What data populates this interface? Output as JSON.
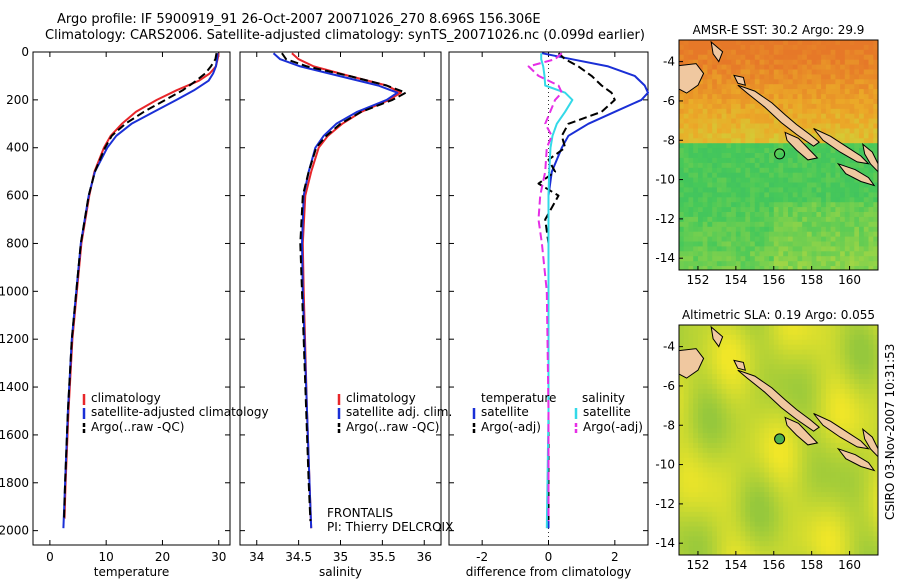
{
  "header": {
    "line1": "Argo profile: IF 5900919_91 26-Oct-2007 20071026_270 8.696S 156.306E",
    "line2": "Climatology: CARS2006. Satellite-adjusted climatology: synTS_20071026.nc (0.099d earlier)"
  },
  "side_stamp": "CSIRO 03-Nov-2007 10:31:53",
  "colors": {
    "climatology": "#e8262a",
    "satellite": "#1a2fd6",
    "argo": "#000000",
    "argo_adj": "#e62ee6",
    "satellite_diff": "#33d9e8"
  },
  "chart_data": [
    {
      "type": "line",
      "xlabel": "temperature",
      "ylim": [
        2060,
        0
      ],
      "xlim": [
        -3,
        32
      ],
      "xticks": [
        "0",
        "10",
        "20",
        "30"
      ],
      "yticks": [
        "0",
        "200",
        "400",
        "600",
        "800",
        "1000",
        "1200",
        "1400",
        "1600",
        "1800",
        "2000"
      ],
      "legend": [
        "climatology",
        "satellite-adjusted climatology",
        "Argo(..raw -QC)"
      ],
      "series": [
        {
          "name": "climatology",
          "style": "solid",
          "color": "#e8262a",
          "depth": [
            5,
            30,
            60,
            90,
            120,
            160,
            200,
            250,
            300,
            350,
            400,
            500,
            600,
            800,
            1000,
            1200,
            1500,
            1800,
            1950
          ],
          "values": [
            30.0,
            29.8,
            29.5,
            28.4,
            26.5,
            22.5,
            19.0,
            15.3,
            12.8,
            10.8,
            9.6,
            7.9,
            7.0,
            5.6,
            4.8,
            4.0,
            3.3,
            2.8,
            2.6
          ]
        },
        {
          "name": "satellite-adjusted climatology",
          "style": "solid",
          "color": "#1a2fd6",
          "depth": [
            5,
            30,
            60,
            90,
            120,
            160,
            200,
            250,
            300,
            350,
            400,
            500,
            600,
            800,
            1000,
            1200,
            1500,
            1800,
            1990
          ],
          "values": [
            29.8,
            29.7,
            29.5,
            29.0,
            28.2,
            25.6,
            22.5,
            18.5,
            14.5,
            11.8,
            10.2,
            8.0,
            6.9,
            5.5,
            4.7,
            3.9,
            3.2,
            2.7,
            2.4
          ]
        },
        {
          "name": "Argo(..raw -QC)",
          "style": "dashed",
          "color": "#000000",
          "depth": [
            5,
            30,
            60,
            90,
            120,
            160,
            200,
            250,
            300,
            350,
            400,
            500,
            600,
            800,
            1000,
            1200,
            1500,
            1800,
            1960
          ],
          "values": [
            29.6,
            29.4,
            28.6,
            27.6,
            26.0,
            23.6,
            20.5,
            16.7,
            13.4,
            11.0,
            9.8,
            8.0,
            6.9,
            5.5,
            4.7,
            3.9,
            3.2,
            2.7,
            2.5
          ]
        }
      ]
    },
    {
      "type": "line",
      "xlabel": "salinity",
      "ylim": [
        2060,
        0
      ],
      "xlim": [
        33.8,
        36.2
      ],
      "xticks": [
        "34",
        "34.5",
        "35",
        "35.5",
        "36"
      ],
      "legend": [
        "climatology",
        "satellite adj. clim.",
        "Argo(..raw -QC)"
      ],
      "annotation": [
        "FRONTALIS",
        "PI: Thierry DELCROIX"
      ],
      "series": [
        {
          "name": "climatology",
          "style": "solid",
          "color": "#e8262a",
          "depth": [
            5,
            30,
            60,
            100,
            140,
            170,
            200,
            250,
            300,
            350,
            400,
            500,
            600,
            800,
            1000,
            1500,
            1800,
            1990
          ],
          "values": [
            34.42,
            34.5,
            34.68,
            35.1,
            35.55,
            35.72,
            35.58,
            35.25,
            35.02,
            34.85,
            34.74,
            34.65,
            34.58,
            34.55,
            34.56,
            34.6,
            34.63,
            34.65
          ]
        },
        {
          "name": "satellite adj. clim.",
          "style": "solid",
          "color": "#1a2fd6",
          "depth": [
            5,
            30,
            60,
            100,
            140,
            170,
            200,
            250,
            300,
            350,
            400,
            500,
            600,
            800,
            1000,
            1500,
            1800,
            1990
          ],
          "values": [
            34.2,
            34.28,
            34.52,
            34.98,
            35.45,
            35.68,
            35.55,
            35.2,
            34.95,
            34.8,
            34.7,
            34.62,
            34.56,
            34.54,
            34.55,
            34.6,
            34.63,
            34.65
          ]
        },
        {
          "name": "Argo(..raw -QC)",
          "style": "dashed",
          "color": "#000000",
          "depth": [
            5,
            30,
            60,
            100,
            140,
            170,
            200,
            250,
            300,
            350,
            400,
            500,
            600,
            800,
            1000,
            1500,
            1800,
            1960
          ],
          "values": [
            34.3,
            34.35,
            34.6,
            35.1,
            35.55,
            35.78,
            35.62,
            35.25,
            35.0,
            34.83,
            34.71,
            34.62,
            34.55,
            34.52,
            34.54,
            34.59,
            34.62,
            34.64
          ]
        }
      ]
    },
    {
      "type": "line",
      "xlabel": "difference from climatology",
      "ylim": [
        2060,
        0
      ],
      "xlim": [
        -3,
        3
      ],
      "xticks": [
        "-2",
        "0",
        "2"
      ],
      "legend": [
        "temperature",
        "satellite",
        "Argo(-adj)",
        "salinity",
        "satellite",
        "Argo(-adj)"
      ],
      "series": [
        {
          "name": "temperature satellite",
          "style": "solid",
          "color": "#1a2fd6",
          "depth": [
            5,
            30,
            60,
            100,
            140,
            170,
            200,
            250,
            300,
            350,
            400,
            500,
            600,
            800,
            1000,
            1500,
            1990
          ],
          "values": [
            -0.2,
            0.7,
            1.8,
            2.6,
            2.9,
            3.0,
            2.8,
            2.0,
            1.2,
            0.6,
            0.4,
            0.1,
            0.0,
            0.0,
            0.0,
            0.0,
            0.0
          ]
        },
        {
          "name": "temperature Argo(-adj)",
          "style": "dashed",
          "color": "#000000",
          "depth": [
            5,
            30,
            60,
            100,
            140,
            170,
            200,
            250,
            300,
            350,
            400,
            450,
            500,
            550,
            600,
            700,
            800,
            1000,
            1500,
            1960
          ],
          "values": [
            0.3,
            0.5,
            0.9,
            1.3,
            1.6,
            1.9,
            2.0,
            1.6,
            0.6,
            0.4,
            0.5,
            0.0,
            0.2,
            -0.3,
            0.3,
            -0.1,
            0.0,
            0.0,
            0.0,
            0.0
          ]
        },
        {
          "name": "salinity satellite",
          "style": "solid",
          "color": "#33d9e8",
          "depth": [
            5,
            30,
            60,
            100,
            140,
            170,
            200,
            250,
            300,
            350,
            400,
            500,
            600,
            800,
            1000,
            1500,
            1990
          ],
          "values": [
            -0.22,
            -0.22,
            -0.16,
            -0.12,
            -0.1,
            0.5,
            0.72,
            0.5,
            0.25,
            0.12,
            0.06,
            0.02,
            0.0,
            0.0,
            0.0,
            0.0,
            -0.05
          ]
        },
        {
          "name": "salinity Argo(-adj)",
          "style": "dashed",
          "color": "#e62ee6",
          "depth": [
            5,
            30,
            60,
            100,
            140,
            170,
            200,
            250,
            300,
            350,
            400,
            500,
            600,
            700,
            800,
            1000,
            1500,
            1960
          ],
          "values": [
            0.4,
            0.2,
            -0.6,
            -0.3,
            0.3,
            0.4,
            0.2,
            0.05,
            -0.1,
            0.1,
            -0.05,
            -0.1,
            -0.25,
            -0.3,
            -0.2,
            -0.05,
            0.0,
            0.0
          ]
        }
      ]
    },
    {
      "type": "heatmap",
      "title": "AMSR-E SST: 30.2 Argo: 29.9",
      "xlim": [
        151,
        161.5
      ],
      "ylim": [
        -14.6,
        -2.9
      ],
      "xticks": [
        "152",
        "154",
        "156",
        "158",
        "160"
      ],
      "yticks": [
        "-4",
        "-6",
        "-8",
        "-10",
        "-12",
        "-14"
      ],
      "argo_position": [
        156.306,
        -8.696
      ]
    },
    {
      "type": "heatmap",
      "title": "Altimetric SLA: 0.19 Argo: 0.055",
      "xlim": [
        151,
        161.5
      ],
      "ylim": [
        -14.6,
        -2.9
      ],
      "xticks": [
        "152",
        "154",
        "156",
        "158",
        "160"
      ],
      "yticks": [
        "-4",
        "-6",
        "-8",
        "-10",
        "-12",
        "-14"
      ],
      "argo_position": [
        156.306,
        -8.696
      ]
    }
  ]
}
